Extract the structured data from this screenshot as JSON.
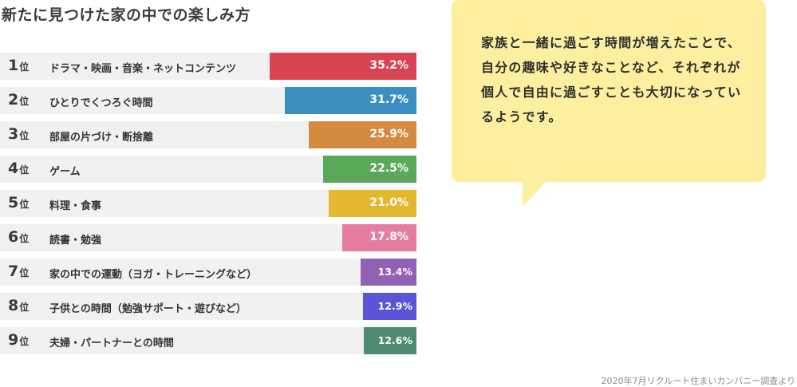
{
  "chart_data": {
    "type": "bar",
    "title": "新たに見つけた家の中での楽しみ方",
    "rank_suffix": "位",
    "max_value": 100,
    "categories": [
      "ドラマ・映画・音楽・ネットコンテンツ",
      "ひとりでくつろぐ時間",
      "部屋の片づけ・断捨離",
      "ゲーム",
      "料理・食事",
      "読書・勉強",
      "家の中での運動（ヨガ・トレーニングなど）",
      "子供との時間（勉強サポート・遊びなど）",
      "夫婦・パートナーとの時間"
    ],
    "ranks": [
      1,
      2,
      3,
      4,
      5,
      6,
      7,
      8,
      9
    ],
    "values": [
      35.2,
      31.7,
      25.9,
      22.5,
      21.0,
      17.8,
      13.4,
      12.9,
      12.6
    ],
    "value_labels": [
      "35.2%",
      "31.7%",
      "25.9%",
      "22.5%",
      "21.0%",
      "17.8%",
      "13.4%",
      "12.9%",
      "12.6%"
    ],
    "colors": [
      "#d94452",
      "#3b8fc0",
      "#d48a3f",
      "#5aa85a",
      "#e3b830",
      "#e77d9e",
      "#9061b4",
      "#5a55d6",
      "#4f8b73"
    ]
  },
  "comment": "家族と一緒に過ごす時間が増えたことで、自分の趣味や好きなことなど、それぞれが個人で自由に過ごすことも大切になっているようです。",
  "source": "2020年7月リクルート住まいカンパニー調査より"
}
